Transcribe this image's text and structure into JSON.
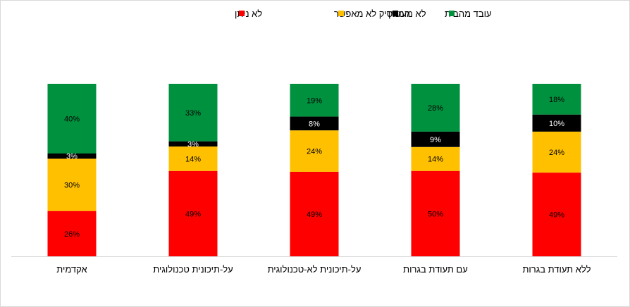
{
  "chart_data": {
    "type": "bar",
    "stacked": true,
    "percent_stacked": true,
    "title": "",
    "xlabel": "",
    "ylabel": "",
    "ylim": [
      0,
      100
    ],
    "grid": false,
    "legend_position": "top",
    "categories": [
      "אקדמית",
      "על-תיכונית טכנולוגית",
      "על-תיכונית לא-טכנולוגית",
      "עם תעודת בגרות",
      "ללא תעודת בגרות"
    ],
    "series": [
      {
        "name": "לא ניתן",
        "color": "#FF0000",
        "label_color": "#000000",
        "values": [
          26,
          49,
          49,
          50,
          49
        ],
        "labels": [
          "26%",
          "49%",
          "49%",
          "50%",
          "49%"
        ]
      },
      {
        "name": "המעסיק לא מאפשר",
        "color": "#FFC000",
        "label_color": "#000000",
        "values": [
          30,
          14,
          24,
          14,
          24
        ],
        "labels": [
          "30%",
          "14%",
          "24%",
          "14%",
          "24%"
        ]
      },
      {
        "name": "לא מעוניין",
        "color": "#000000",
        "label_color": "#FFFFFF",
        "values": [
          3,
          3,
          8,
          9,
          10
        ],
        "labels": [
          "3%",
          "3%",
          "8%",
          "9%",
          "10%"
        ]
      },
      {
        "name": "עובד מהבית",
        "color": "#00913F",
        "label_color": "#000000",
        "values": [
          40,
          33,
          19,
          28,
          18
        ],
        "labels": [
          "40%",
          "33%",
          "19%",
          "28%",
          "18%"
        ]
      }
    ]
  }
}
